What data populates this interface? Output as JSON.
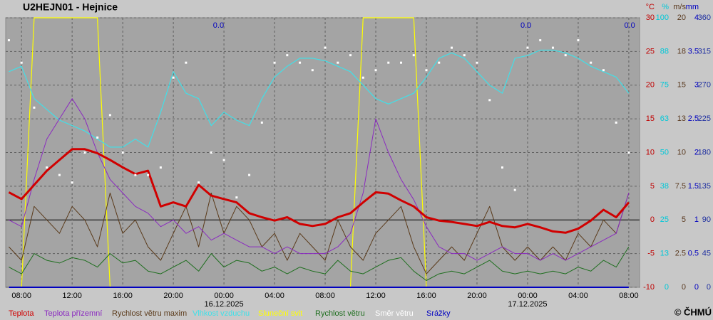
{
  "chart_data": {
    "type": "line",
    "title": "U2HEJN01 - Hejnice",
    "copyright": "© ČHMÚ",
    "xlim": [
      -0.25,
      49.85
    ],
    "xticks": [
      {
        "value": 1,
        "label": "08:00"
      },
      {
        "value": 5,
        "label": "12:00"
      },
      {
        "value": 9,
        "label": "16:00"
      },
      {
        "value": 13,
        "label": "20:00"
      },
      {
        "value": 17,
        "label": "00:00"
      },
      {
        "value": 21,
        "label": "04:00"
      },
      {
        "value": 25,
        "label": "08:00"
      },
      {
        "value": 29,
        "label": "12:00"
      },
      {
        "value": 33,
        "label": "16:00"
      },
      {
        "value": 37,
        "label": "20:00"
      },
      {
        "value": 41,
        "label": "00:00"
      },
      {
        "value": 45,
        "label": "04:00"
      },
      {
        "value": 49,
        "label": "08:00"
      }
    ],
    "date_labels": [
      {
        "x": 17,
        "label": "16.12.2025"
      },
      {
        "x": 41,
        "label": "17.12.2025"
      }
    ],
    "annotations": [
      {
        "x": 17,
        "label": "0.0"
      },
      {
        "x": 41.3,
        "label": "0.0"
      },
      {
        "x": 49.5,
        "label": "0.0"
      }
    ],
    "grid": true,
    "zero_line": true,
    "axes": {
      "temp": {
        "unit": "°C",
        "color": "#c00000",
        "lim": [
          -10,
          30
        ],
        "ticks": [
          -10,
          -5,
          0,
          5,
          10,
          15,
          20,
          25,
          30
        ]
      },
      "humidity": {
        "unit": "%",
        "color": "#00c8d8",
        "lim": [
          0,
          100
        ],
        "ticks": [
          0,
          {
            "value": 12.5,
            "label": "13"
          },
          25,
          {
            "value": 37.5,
            "label": "38"
          },
          50,
          {
            "value": 62.5,
            "label": "63"
          },
          75,
          {
            "value": 87.5,
            "label": "88"
          },
          100
        ]
      },
      "wind": {
        "unit": "m/s",
        "color": "#5a3a20",
        "lim": [
          0,
          20
        ],
        "ticks": [
          0,
          2.5,
          5,
          7.5,
          10,
          {
            "value": 12.5,
            "label": "13"
          },
          15,
          {
            "value": 17.5,
            "label": "18"
          },
          20
        ]
      },
      "precip": {
        "unit": "mm",
        "color": "#0000c0",
        "lim": [
          0,
          4
        ],
        "ticks": [
          0,
          0.5,
          1,
          1.5,
          2,
          2.5,
          3,
          3.5,
          4
        ]
      },
      "direction": {
        "color": "#2030a0",
        "lim": [
          0,
          360
        ],
        "ticks": [
          0,
          45,
          90,
          135,
          180,
          225,
          270,
          315,
          360
        ]
      }
    },
    "x": [
      0,
      1,
      2,
      3,
      4,
      5,
      6,
      7,
      8,
      9,
      10,
      11,
      12,
      13,
      14,
      15,
      16,
      17,
      18,
      19,
      20,
      21,
      22,
      23,
      24,
      25,
      26,
      27,
      28,
      29,
      30,
      31,
      32,
      33,
      34,
      35,
      36,
      37,
      38,
      39,
      40,
      41,
      42,
      43,
      44,
      45,
      46,
      47,
      48,
      49
    ],
    "series": [
      {
        "name": "Sluneční svit",
        "color": "#ffff00",
        "axis": "humidity",
        "width": 1.2,
        "values": [
          0,
          0,
          100,
          100,
          100,
          100,
          100,
          100,
          0,
          0,
          0,
          0,
          0,
          0,
          0,
          0,
          0,
          0,
          0,
          0,
          0,
          0,
          0,
          0,
          0,
          0,
          0,
          0,
          100,
          100,
          100,
          100,
          100,
          0,
          0,
          0,
          0,
          0,
          0,
          0,
          0,
          0,
          0,
          0,
          0,
          0,
          0,
          0,
          0,
          0
        ]
      },
      {
        "name": "Vlhkost vzduchu",
        "color": "#40e0e8",
        "axis": "humidity",
        "width": 1.2,
        "values": [
          80,
          82,
          70,
          66,
          62,
          60,
          58,
          55,
          52,
          52,
          55,
          52,
          65,
          80,
          72,
          70,
          60,
          65,
          62,
          60,
          70,
          78,
          82,
          85,
          85,
          84,
          82,
          80,
          75,
          70,
          68,
          70,
          72,
          78,
          85,
          87,
          85,
          80,
          75,
          72,
          85,
          86,
          88,
          88,
          87,
          85,
          82,
          80,
          78,
          72
        ]
      },
      {
        "name": "Rychlost větru maxim",
        "color": "#5a3a1a",
        "axis": "wind",
        "width": 1,
        "values": [
          3,
          2,
          6,
          5,
          4,
          6,
          5,
          3,
          7,
          4,
          5,
          3,
          2,
          4,
          6,
          3,
          7,
          4,
          6,
          5,
          3,
          4,
          2,
          4,
          3,
          2,
          5,
          3,
          2,
          4,
          5,
          6,
          3,
          1,
          2,
          3,
          2,
          4,
          6,
          3,
          2,
          3,
          2,
          3,
          2,
          4,
          3,
          5,
          4,
          7
        ]
      },
      {
        "name": "Rychlost větru",
        "color": "#1e6e1e",
        "axis": "wind",
        "width": 1,
        "values": [
          1.5,
          1,
          2.5,
          2,
          1.8,
          2.2,
          2,
          1.5,
          2.5,
          1.8,
          2,
          1.2,
          1,
          1.5,
          2,
          1.2,
          2.5,
          1.5,
          2,
          1.8,
          1.2,
          1.5,
          1,
          1.5,
          1.2,
          1,
          2,
          1.2,
          1,
          1.5,
          2,
          2.2,
          1.2,
          0.5,
          1,
          1.2,
          1,
          1.5,
          2,
          1.2,
          1,
          1.2,
          1,
          1.2,
          1,
          1.5,
          1.2,
          2,
          1.5,
          3
        ]
      },
      {
        "name": "Teplota přízemní",
        "color": "#8a2ac0",
        "axis": "temp",
        "width": 1,
        "values": [
          0,
          -1,
          6,
          12,
          15,
          18,
          15,
          10,
          6,
          4,
          2,
          1,
          -1,
          0,
          -2,
          -1,
          -3,
          -2,
          -3,
          -4,
          -4,
          -5,
          -4,
          -5,
          -5,
          -5,
          -4,
          -2,
          4,
          15,
          10,
          6,
          3,
          -1,
          -4,
          -5,
          -5,
          -6,
          -5,
          -4,
          -5,
          -5,
          -6,
          -5,
          -6,
          -5,
          -4,
          -3,
          -2,
          4
        ]
      },
      {
        "name": "Teplota",
        "color": "#d00000",
        "axis": "temp",
        "width": 3,
        "values": [
          4.1,
          3.1,
          5.2,
          7.3,
          8.9,
          10.5,
          10.5,
          9.9,
          8.9,
          7.8,
          6.8,
          7.3,
          2,
          2.6,
          2,
          5.2,
          3.6,
          3.1,
          2.6,
          1,
          0.4,
          -0.1,
          0.4,
          -0.6,
          -0.9,
          -0.6,
          0.4,
          1,
          2.6,
          4.1,
          3.9,
          2.9,
          2,
          0.4,
          -0.1,
          -0.3,
          -0.6,
          -0.9,
          -0.3,
          -0.9,
          -1.1,
          -0.6,
          -1.1,
          -1.7,
          -1.9,
          -1.3,
          -0.1,
          1.5,
          0.4,
          2.6
        ]
      },
      {
        "name": "Směr větru",
        "color": "#ffffff",
        "axis": "direction",
        "points": true,
        "values": [
          330,
          300,
          240,
          160,
          150,
          140,
          180,
          200,
          230,
          180,
          150,
          150,
          160,
          280,
          300,
          140,
          180,
          170,
          120,
          150,
          220,
          300,
          310,
          300,
          290,
          320,
          300,
          310,
          280,
          290,
          300,
          300,
          310,
          290,
          300,
          320,
          310,
          300,
          250,
          160,
          130,
          320,
          330,
          320,
          310,
          330,
          300,
          290,
          220,
          180
        ]
      },
      {
        "name": "Srážky",
        "color": "#0000c0",
        "axis": "precip",
        "width": 2,
        "values": [
          0,
          0,
          0,
          0,
          0,
          0,
          0,
          0,
          0,
          0,
          0,
          0,
          0,
          0,
          0,
          0,
          0,
          0,
          0,
          0,
          0,
          0,
          0,
          0,
          0,
          0,
          0,
          0,
          0,
          0,
          0,
          0,
          0,
          0,
          0,
          0,
          0,
          0,
          0,
          0,
          0,
          0,
          0,
          0,
          0,
          0,
          0,
          0,
          0,
          0
        ]
      }
    ]
  }
}
